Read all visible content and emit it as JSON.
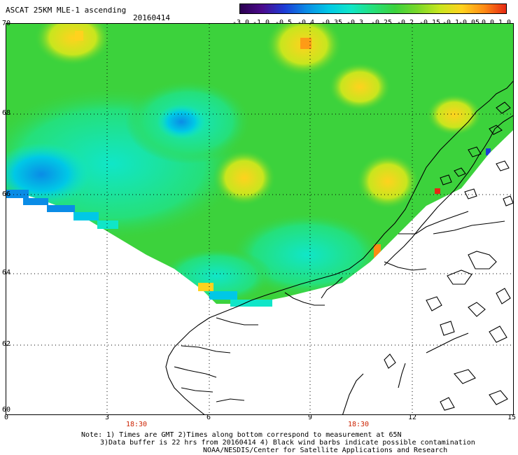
{
  "header": {
    "title": "ASCAT 25KM MLE-1 ascending",
    "date": "20160414"
  },
  "colorbar": {
    "labels": [
      "-3.0",
      "-1.0",
      "-0.5",
      "-0.4",
      "-0.35",
      "-0.3",
      "-0.25",
      "-0.2",
      "-0.15",
      "-0.1",
      "-0.05",
      "0.0",
      "1.0"
    ],
    "colors": [
      "#2a0050",
      "#4b0a8c",
      "#1d3bd6",
      "#0a8ce6",
      "#00c8e6",
      "#10e6c8",
      "#25e07a",
      "#3cd23c",
      "#7ad82a",
      "#c8e61e",
      "#ffd21e",
      "#ff8c14",
      "#e62814"
    ]
  },
  "axes": {
    "lat_labels": [
      "70",
      "68",
      "66",
      "64",
      "62",
      "60"
    ],
    "lon_labels": [
      "0",
      "3",
      "6",
      "9",
      "12",
      "15"
    ],
    "time_labels": [
      "18:30",
      "18:30"
    ]
  },
  "footer": {
    "line1": "Note: 1) Times are GMT 2)Times along bottom correspond to measurement at 65N",
    "line2": "3)Data buffer is 22 hrs from 20160414 4) Black wind barbs indicate possible contamination",
    "line3": "NOAA/NESDIS/Center for Satellite Applications and Research"
  },
  "style": {
    "ocean_green": "#3cd23c",
    "cyan_region": "#10e6c8",
    "blue_region": "#0a8ce6",
    "yellow_spot": "#ffd21e",
    "orange_spot": "#ff8c14",
    "coast_line": "#000000",
    "time_label_color": "#cc2200"
  }
}
